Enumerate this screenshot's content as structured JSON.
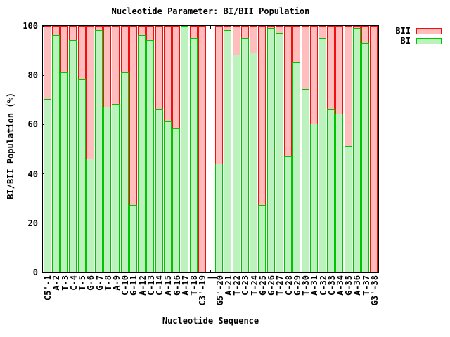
{
  "title": "Nucleotide Parameter: BI/BII Population",
  "colors": {
    "background": "#ffffff",
    "axis": "#000000",
    "bii_fill": "#ffbdbd",
    "bii_border": "#f01010",
    "bi_fill": "#bdf1bd",
    "bi_border": "#00c400"
  },
  "chart_data": {
    "type": "bar",
    "stacked": true,
    "title": "Nucleotide Parameter: BI/BII Population",
    "xlabel": "Nucleotide Sequence",
    "ylabel": "BI/BII Population (%)",
    "ylim": [
      0,
      100
    ],
    "yticks": [
      0,
      20,
      40,
      60,
      80,
      100
    ],
    "legend_position": "top-right-outside",
    "grid": false,
    "x_tick_rotation": -90,
    "categories": [
      "C5'-1",
      "A-2",
      "T-3",
      "C-4",
      "T-5",
      "G-6",
      "G-7",
      "T-8",
      "A-9",
      "C-10",
      "G-11",
      "A-12",
      "C-13",
      "C-14",
      "A-15",
      "G-16",
      "A-17",
      "T-18",
      "C3'-19",
      "|",
      "G5'-20",
      "A-21",
      "T-22",
      "C-23",
      "T-24",
      "G-25",
      "G-26",
      "T-27",
      "C-28",
      "G-29",
      "T-30",
      "A-31",
      "C-32",
      "C-33",
      "A-34",
      "G-35",
      "A-36",
      "T-37",
      "G3'-38"
    ],
    "series": [
      {
        "name": "BII",
        "fill": "#ffbdbd",
        "border": "#f01010",
        "values": [
          30,
          4,
          19,
          6,
          22,
          54,
          2,
          33,
          32,
          19,
          73,
          4,
          6,
          34,
          39,
          42,
          0,
          5,
          100,
          null,
          56,
          2,
          12,
          5,
          11,
          73,
          1,
          3,
          53,
          15,
          26,
          40,
          5,
          34,
          36,
          49,
          1,
          7,
          100
        ]
      },
      {
        "name": "BI",
        "fill": "#bdf1bd",
        "border": "#00c400",
        "values": [
          70,
          96,
          81,
          94,
          78,
          46,
          98,
          67,
          68,
          81,
          27,
          96,
          94,
          66,
          61,
          58,
          100,
          95,
          0,
          null,
          44,
          98,
          88,
          95,
          89,
          27,
          99,
          97,
          47,
          85,
          74,
          60,
          95,
          66,
          64,
          51,
          99,
          93,
          0
        ]
      }
    ]
  }
}
